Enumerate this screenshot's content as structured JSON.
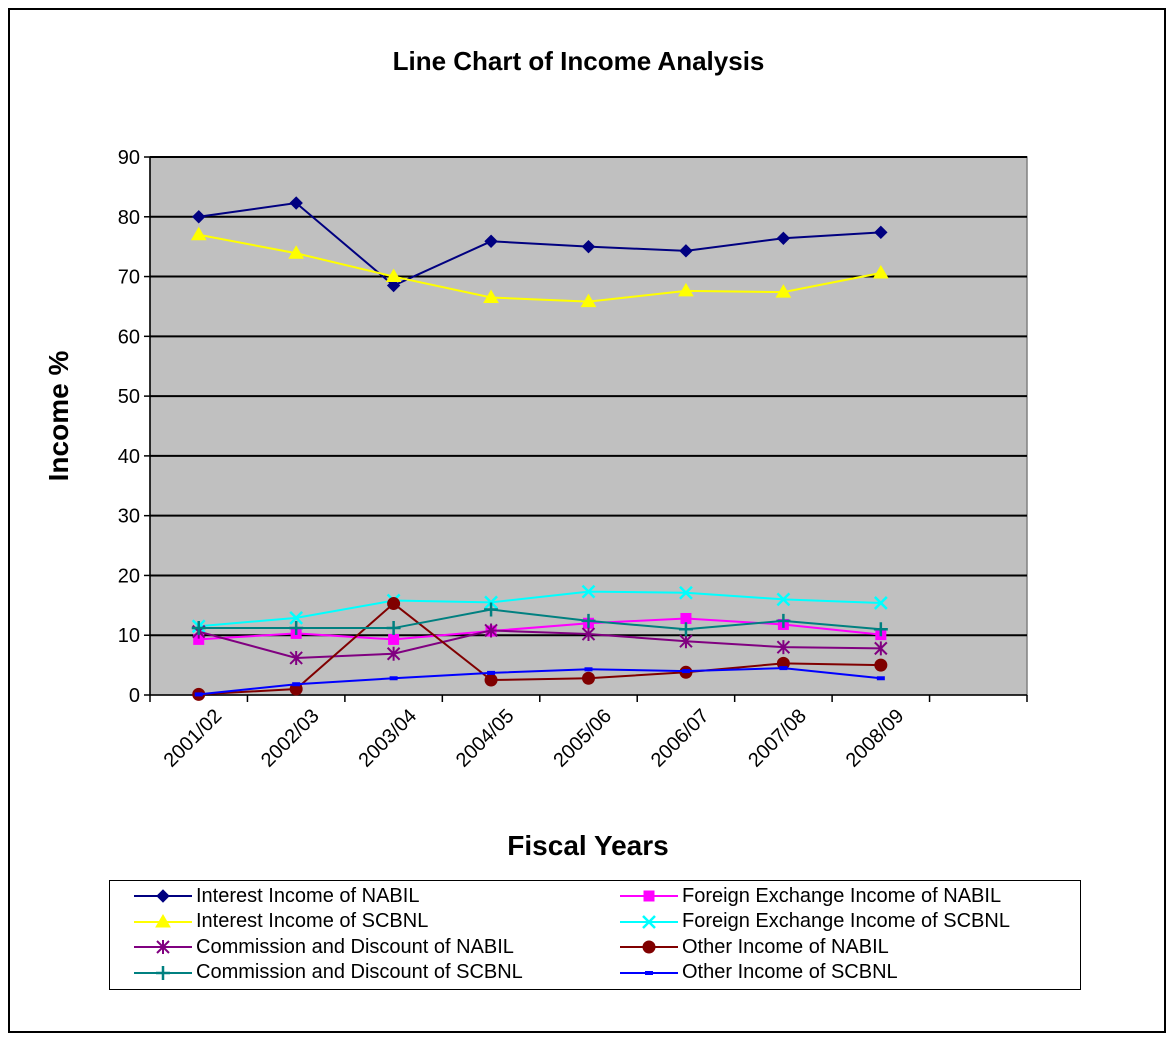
{
  "chart_data": {
    "type": "line",
    "title": "Line Chart of Income Analysis",
    "xlabel": "Fiscal Years",
    "ylabel": "Income %",
    "ylim": [
      0,
      90
    ],
    "yticks": [
      0,
      10,
      20,
      30,
      40,
      50,
      60,
      70,
      80,
      90
    ],
    "categories": [
      "2001/02",
      "2002/03",
      "2003/04",
      "2004/05",
      "2005/06",
      "2006/07",
      "2007/08",
      "2008/09"
    ],
    "grid": true,
    "plot_background": "#c0c0c0",
    "legend_position": "bottom",
    "series": [
      {
        "name": "Interest Income of NABIL",
        "color": "#000080",
        "marker": "diamond",
        "values": [
          80.0,
          82.3,
          68.5,
          75.9,
          75.0,
          74.3,
          76.4,
          77.4
        ]
      },
      {
        "name": "Foreign Exchange Income of NABIL",
        "color": "#ff00ff",
        "marker": "square",
        "values": [
          9.3,
          10.3,
          9.3,
          10.7,
          12.0,
          12.8,
          11.8,
          10.1
        ]
      },
      {
        "name": "Interest Income of SCBNL",
        "color": "#ffff00",
        "marker": "triangle",
        "values": [
          77.0,
          73.9,
          70.0,
          66.5,
          65.8,
          67.6,
          67.4,
          70.6
        ]
      },
      {
        "name": "Foreign Exchange Income of SCBNL",
        "color": "#00ffff",
        "marker": "x",
        "values": [
          11.5,
          12.9,
          15.8,
          15.5,
          17.3,
          17.1,
          16.0,
          15.4
        ]
      },
      {
        "name": "Commission and Discount of NABIL",
        "color": "#800080",
        "marker": "star",
        "values": [
          10.6,
          6.2,
          6.9,
          10.8,
          10.2,
          9.0,
          8.0,
          7.8
        ]
      },
      {
        "name": "Other Income of NABIL",
        "color": "#800000",
        "marker": "circle",
        "values": [
          0.1,
          1.0,
          15.3,
          2.5,
          2.8,
          3.8,
          5.3,
          5.0
        ]
      },
      {
        "name": "Commission and Discount of SCBNL",
        "color": "#008080",
        "marker": "plus",
        "values": [
          11.2,
          11.2,
          11.2,
          14.3,
          12.4,
          11.0,
          12.4,
          11.0
        ]
      },
      {
        "name": "Other Income of SCBNL",
        "color": "#0000ff",
        "marker": "dash",
        "values": [
          0.1,
          1.8,
          2.8,
          3.7,
          4.3,
          4.0,
          4.5,
          2.8
        ]
      }
    ]
  }
}
